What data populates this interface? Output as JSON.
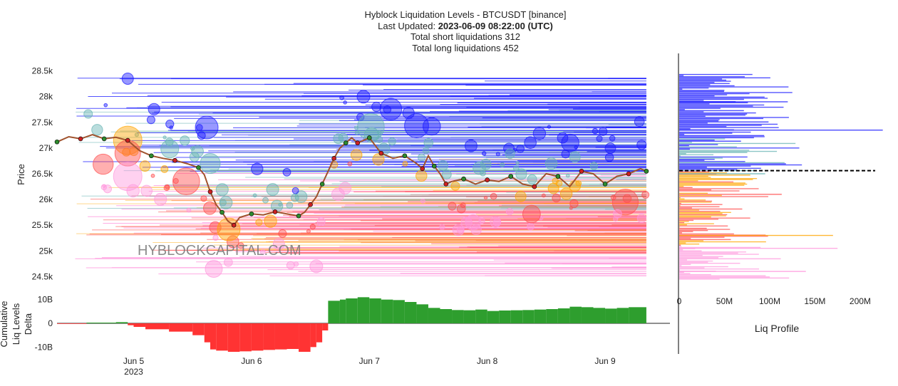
{
  "header": {
    "title": "Hyblock Liquidation Levels - BTCUSDT [binance]",
    "updated_label": "Last Updated: ",
    "updated_value": "2023-06-09 08:22:00 (UTC)",
    "short_liq": "Total short liquidations 312",
    "long_liq": "Total long liquidations 452"
  },
  "watermark": "HYBLOCKCAPITAL.COM",
  "colors": {
    "short_dark": "#1a1aff",
    "short_light": "#66b3b3",
    "long_orange": "#ffa500",
    "long_red": "#ff4d4d",
    "long_pink": "#ff99dd",
    "delta_pos": "#2e9e2e",
    "delta_neg": "#ff3333",
    "price_line": "#a0522d"
  },
  "chart_data": [
    {
      "type": "scatter",
      "name": "liquidation-levels",
      "ylabel": "Price",
      "ylim": [
        24200,
        28800
      ],
      "y_ticks": [
        {
          "value": 24500,
          "label": "24.5k"
        },
        {
          "value": 25000,
          "label": "25k"
        },
        {
          "value": 25500,
          "label": "25.5k"
        },
        {
          "value": 26000,
          "label": "26k"
        },
        {
          "value": 26500,
          "label": "26.5k"
        },
        {
          "value": 27000,
          "label": "27k"
        },
        {
          "value": 27500,
          "label": "27.5k"
        },
        {
          "value": 28000,
          "label": "28k"
        },
        {
          "value": 28500,
          "label": "28.5k"
        }
      ],
      "x_ticks": [
        {
          "value": 1,
          "label": "Jun 5",
          "sublabel": "2023"
        },
        {
          "value": 2,
          "label": "Jun 6"
        },
        {
          "value": 3,
          "label": "Jun 7"
        },
        {
          "value": 4,
          "label": "Jun 8"
        },
        {
          "value": 5,
          "label": "Jun 9"
        }
      ],
      "xlim": [
        0.35,
        5.55
      ],
      "price": {
        "x": [
          0.35,
          0.45,
          0.55,
          0.65,
          0.75,
          0.85,
          0.95,
          1.05,
          1.15,
          1.25,
          1.35,
          1.45,
          1.55,
          1.6,
          1.65,
          1.7,
          1.75,
          1.8,
          1.85,
          1.9,
          2.0,
          2.1,
          2.2,
          2.3,
          2.4,
          2.45,
          2.5,
          2.55,
          2.6,
          2.65,
          2.7,
          2.75,
          2.8,
          2.85,
          2.9,
          2.95,
          3.0,
          3.05,
          3.1,
          3.2,
          3.3,
          3.4,
          3.45,
          3.5,
          3.55,
          3.6,
          3.65,
          3.7,
          3.8,
          3.9,
          4.0,
          4.1,
          4.2,
          4.3,
          4.4,
          4.5,
          4.6,
          4.7,
          4.8,
          4.9,
          5.0,
          5.1,
          5.2,
          5.3,
          5.35
        ],
        "y": [
          27120,
          27220,
          27180,
          27260,
          27180,
          27210,
          27150,
          26950,
          26850,
          26800,
          26760,
          26700,
          26620,
          26480,
          26150,
          25900,
          25750,
          25580,
          25500,
          25650,
          25720,
          25700,
          25760,
          25720,
          25680,
          25750,
          25900,
          26050,
          26300,
          26550,
          26800,
          27000,
          27100,
          27200,
          27100,
          27150,
          27200,
          27050,
          26900,
          26800,
          26850,
          26700,
          26600,
          26850,
          26650,
          26500,
          26300,
          26350,
          26400,
          26300,
          26380,
          26350,
          26450,
          26300,
          26250,
          26500,
          26450,
          26250,
          26550,
          26500,
          26300,
          26450,
          26500,
          26600,
          26550
        ]
      },
      "short_levels_dark": {
        "from": 26500,
        "to": 28400
      },
      "short_levels_light": {
        "from": 25800,
        "to": 27800
      },
      "long_levels_orange": {
        "from": 25000,
        "to": 27000
      },
      "long_levels_red": {
        "from": 24900,
        "to": 26200
      },
      "long_levels_pink": {
        "from": 24500,
        "to": 26600
      }
    },
    {
      "type": "area",
      "name": "cumulative-liq-levels-delta",
      "ylabel": "Cumulative Liq Levels Delta",
      "ylim": [
        -12,
        12
      ],
      "y_ticks": [
        {
          "value": 10,
          "label": "10B"
        },
        {
          "value": 0,
          "label": "0"
        },
        {
          "value": -10,
          "label": "-10B"
        }
      ],
      "x": [
        0.35,
        0.6,
        0.85,
        0.95,
        1.0,
        1.1,
        1.3,
        1.5,
        1.6,
        1.65,
        1.7,
        1.8,
        1.9,
        2.0,
        2.1,
        2.2,
        2.3,
        2.4,
        2.5,
        2.55,
        2.6,
        2.65,
        2.75,
        2.8,
        2.9,
        3.0,
        3.1,
        3.2,
        3.3,
        3.4,
        3.5,
        3.6,
        3.7,
        3.8,
        3.9,
        4.0,
        4.1,
        4.2,
        4.3,
        4.4,
        4.5,
        4.6,
        4.7,
        4.8,
        4.9,
        5.0,
        5.1,
        5.2,
        5.35
      ],
      "values": [
        -0.2,
        -0.1,
        0.3,
        0.5,
        -0.8,
        -1.5,
        -2.5,
        -3.5,
        -5,
        -8,
        -11,
        -11.5,
        -12,
        -11.8,
        -11.5,
        -11.2,
        -11,
        -10.8,
        -12,
        -10,
        -8,
        -3,
        9.5,
        10,
        10.5,
        11,
        10.5,
        10,
        9.8,
        9,
        8,
        6.5,
        6,
        5.6,
        5.5,
        5.8,
        5.2,
        5.4,
        5.5,
        5.6,
        5.8,
        6,
        6.3,
        7,
        6.8,
        6.5,
        6.2,
        6.5,
        6.8
      ]
    },
    {
      "type": "bar",
      "name": "liq-profile",
      "xlabel": "Liq Profile",
      "orientation": "horizontal",
      "xlim": [
        0,
        230
      ],
      "x_ticks": [
        {
          "value": 0,
          "label": "0"
        },
        {
          "value": 50,
          "label": "50M"
        },
        {
          "value": 100,
          "label": "100M"
        },
        {
          "value": 150,
          "label": "150M"
        },
        {
          "value": 200,
          "label": "200M"
        }
      ],
      "current_price": 26560
    }
  ]
}
